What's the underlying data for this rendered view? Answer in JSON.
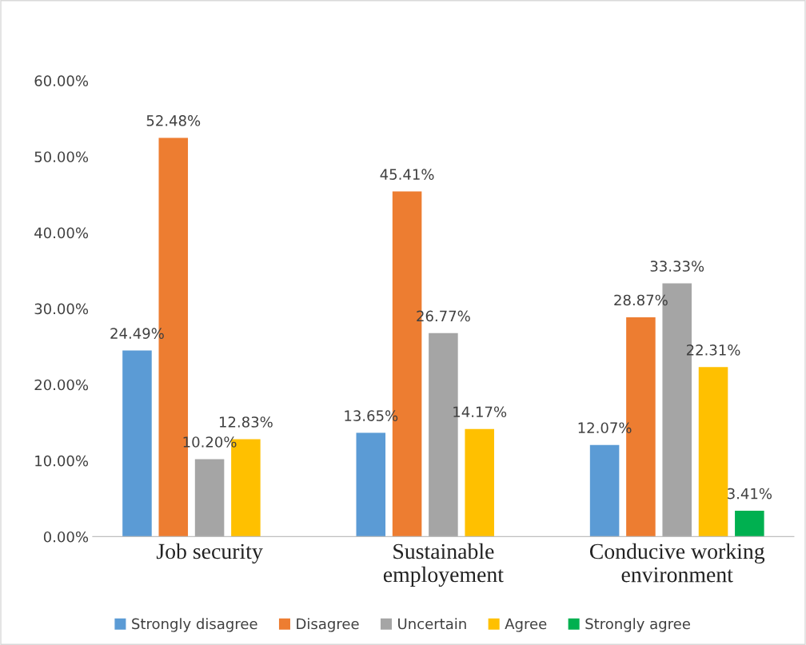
{
  "chart_data": {
    "type": "bar",
    "categories": [
      "Job security",
      "Sustainable\nemployement",
      "Conducive working\nenvironment"
    ],
    "series": [
      {
        "name": "Strongly disagree",
        "color": "#5b9bd5",
        "values": [
          24.49,
          13.65,
          12.07
        ],
        "value_labels": [
          "24.49%",
          "13.65%",
          "12.07%"
        ]
      },
      {
        "name": "Disagree",
        "color": "#ed7d31",
        "values": [
          52.48,
          45.41,
          28.87
        ],
        "value_labels": [
          "52.48%",
          "45.41%",
          "28.87%"
        ]
      },
      {
        "name": "Uncertain",
        "color": "#a5a5a5",
        "values": [
          10.2,
          26.77,
          33.33
        ],
        "value_labels": [
          "10.20%",
          "26.77%",
          "33.33%"
        ]
      },
      {
        "name": "Agree",
        "color": "#ffc000",
        "values": [
          12.83,
          14.17,
          22.31
        ],
        "value_labels": [
          "12.83%",
          "14.17%",
          "22.31%"
        ]
      },
      {
        "name": "Strongly agree",
        "color": "#00b050",
        "values": [
          null,
          null,
          3.41
        ],
        "value_labels": [
          null,
          null,
          "3.41%"
        ]
      }
    ],
    "ylim": [
      0,
      60
    ],
    "yticks": [
      {
        "value": 0,
        "label": "0.00%"
      },
      {
        "value": 10,
        "label": "10.00%"
      },
      {
        "value": 20,
        "label": "20.00%"
      },
      {
        "value": 30,
        "label": "30.00%"
      },
      {
        "value": 40,
        "label": "40.00%"
      },
      {
        "value": 50,
        "label": "50.00%"
      },
      {
        "value": 60,
        "label": "60.00%"
      }
    ],
    "grid": false,
    "legend": "bottom"
  }
}
